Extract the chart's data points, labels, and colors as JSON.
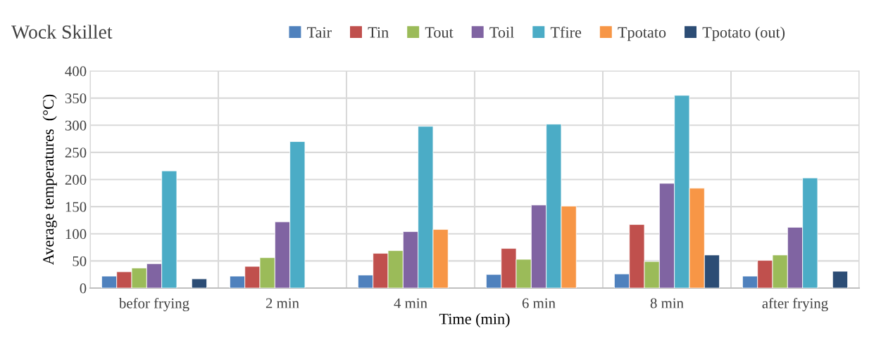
{
  "chart_data": {
    "type": "bar",
    "title": "Wock Skillet",
    "xlabel": "Time (min)",
    "ylabel": "Average temperatures  (°C)",
    "categories": [
      "befor frying",
      "2 min",
      "4 min",
      "6 min",
      "8 min",
      "after frying"
    ],
    "series": [
      {
        "name": "Tair",
        "color": "#4f81bd",
        "values": [
          22,
          22,
          24,
          25,
          26,
          22
        ]
      },
      {
        "name": "Tin",
        "color": "#c0504d",
        "values": [
          30,
          40,
          64,
          73,
          117,
          51
        ]
      },
      {
        "name": "Tout",
        "color": "#9bbb59",
        "values": [
          37,
          56,
          69,
          53,
          49,
          61
        ]
      },
      {
        "name": "Toil",
        "color": "#8064a2",
        "values": [
          45,
          122,
          104,
          153,
          193,
          112
        ]
      },
      {
        "name": "Tfire",
        "color": "#4bacc6",
        "values": [
          216,
          270,
          298,
          302,
          355,
          203
        ]
      },
      {
        "name": "Tpotato",
        "color": "#f79646",
        "values": [
          null,
          null,
          108,
          151,
          184,
          null
        ]
      },
      {
        "name": "Tpotato (out)",
        "color": "#2c4d75",
        "values": [
          17,
          null,
          null,
          null,
          61,
          31
        ]
      }
    ],
    "ylim": [
      0,
      400
    ],
    "yticks": [
      0,
      50,
      100,
      150,
      200,
      250,
      300,
      350,
      400
    ],
    "grid": true,
    "legend": "top"
  }
}
